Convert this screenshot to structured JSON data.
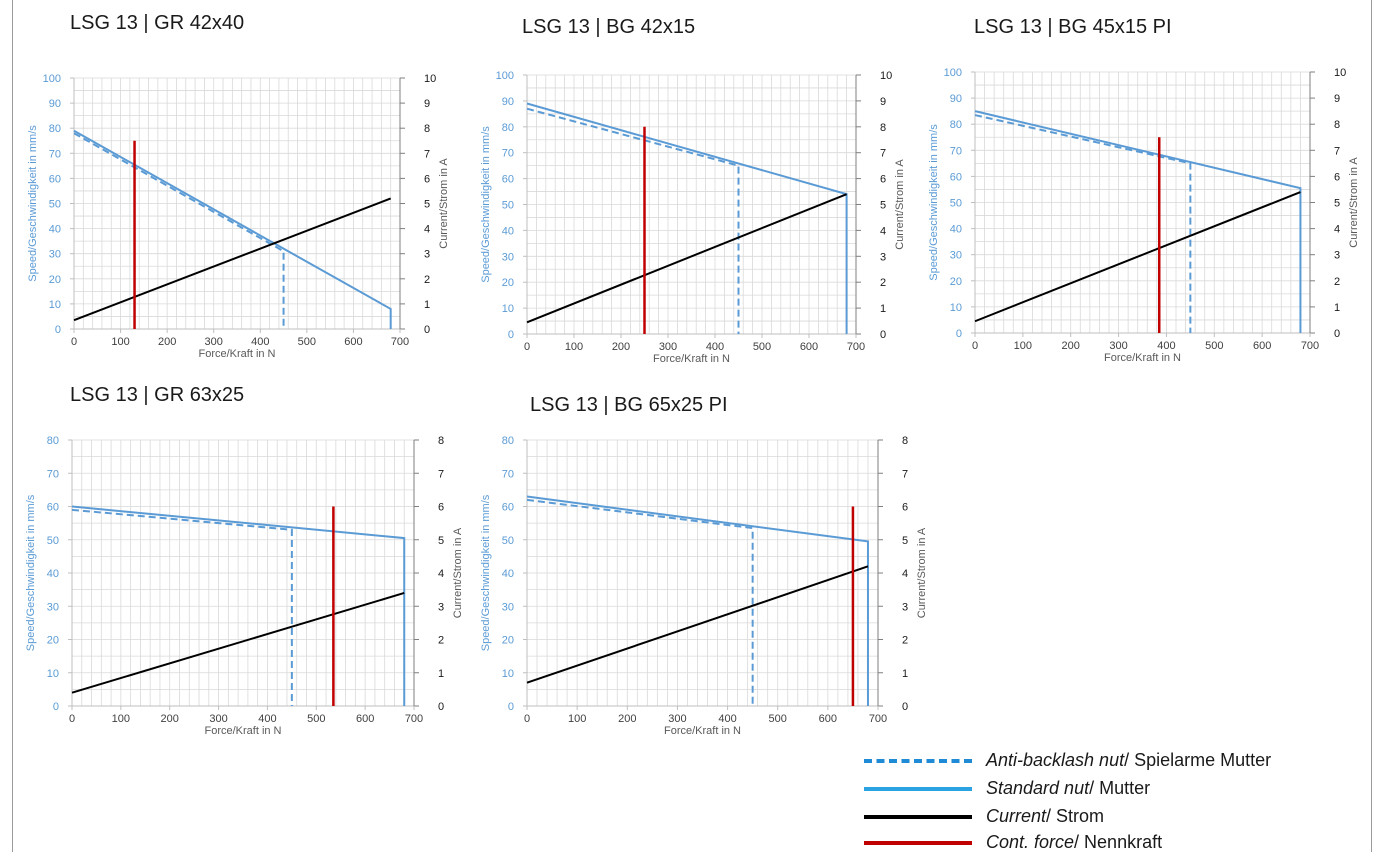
{
  "colors": {
    "standard": "#5b9bd5",
    "anti_backlash": "#5b9bd5",
    "current": "#000000",
    "cont_force": "#c00000",
    "left_axis_text": "#5b9bd5",
    "grid": "#d9d9d9",
    "legend_dash": "#1f8ad6",
    "legend_solid": "#2ba3e3"
  },
  "legend": {
    "anti_backlash": {
      "italic": "Anti-backlash nut",
      "plain": "/ Spielarme Mutter"
    },
    "standard": {
      "italic": "Standard nut",
      "plain": "/ Mutter"
    },
    "current": {
      "italic": "Current",
      "plain": "/ Strom"
    },
    "cont_force": {
      "italic": "Cont. force",
      "plain": "/ Nennkraft"
    }
  },
  "chart_data": [
    {
      "type": "line",
      "title": "LSG 13 | GR 42x40",
      "xlabel": "Force/Kraft in N",
      "ylabel": "Speed/Geschwindigkeit in mm/s",
      "y2label": "Current/Strom in A",
      "xlim": [
        0,
        700
      ],
      "xticks": [
        0,
        100,
        200,
        300,
        400,
        500,
        600,
        700
      ],
      "ylim": [
        0,
        100
      ],
      "yticks": [
        0,
        10,
        20,
        30,
        40,
        50,
        60,
        70,
        80,
        90,
        100
      ],
      "y2lim": [
        0,
        10
      ],
      "y2ticks": [
        0,
        1,
        2,
        3,
        4,
        5,
        6,
        7,
        8,
        9,
        10
      ],
      "grid": true,
      "series": [
        {
          "key": "standard",
          "axis": "left",
          "x": [
            0,
            680,
            680
          ],
          "y": [
            79,
            8,
            0
          ]
        },
        {
          "key": "anti_backlash",
          "axis": "left",
          "x": [
            0,
            450,
            450
          ],
          "y": [
            78,
            31,
            0
          ]
        },
        {
          "key": "current",
          "axis": "right",
          "x": [
            0,
            680
          ],
          "y": [
            0.35,
            5.2
          ]
        },
        {
          "key": "cont_force",
          "axis": "left",
          "x": [
            130,
            130
          ],
          "y": [
            0,
            75
          ]
        }
      ]
    },
    {
      "type": "line",
      "title": "LSG 13 | BG 42x15",
      "xlabel": "Force/Kraft in N",
      "ylabel": "Speed/Geschwindigkeit in mm/s",
      "y2label": "Current/Strom in A",
      "xlim": [
        0,
        700
      ],
      "xticks": [
        0,
        100,
        200,
        300,
        400,
        500,
        600,
        700
      ],
      "ylim": [
        0,
        100
      ],
      "yticks": [
        0,
        10,
        20,
        30,
        40,
        50,
        60,
        70,
        80,
        90,
        100
      ],
      "y2lim": [
        0,
        10
      ],
      "y2ticks": [
        0,
        1,
        2,
        3,
        4,
        5,
        6,
        7,
        8,
        9,
        10
      ],
      "grid": true,
      "series": [
        {
          "key": "standard",
          "axis": "left",
          "x": [
            0,
            680,
            680
          ],
          "y": [
            89,
            54,
            0
          ]
        },
        {
          "key": "anti_backlash",
          "axis": "left",
          "x": [
            0,
            450,
            450
          ],
          "y": [
            87,
            65,
            0
          ]
        },
        {
          "key": "current",
          "axis": "right",
          "x": [
            0,
            680
          ],
          "y": [
            0.45,
            5.4
          ]
        },
        {
          "key": "cont_force",
          "axis": "left",
          "x": [
            250,
            250
          ],
          "y": [
            0,
            80
          ]
        }
      ]
    },
    {
      "type": "line",
      "title": "LSG 13 | BG 45x15 PI",
      "xlabel": "Force/Kraft in N",
      "ylabel": "Speed/Geschwindigkeit in mm/s",
      "y2label": "Current/Strom in A",
      "xlim": [
        0,
        700
      ],
      "xticks": [
        0,
        100,
        200,
        300,
        400,
        500,
        600,
        700
      ],
      "ylim": [
        0,
        100
      ],
      "yticks": [
        0,
        10,
        20,
        30,
        40,
        50,
        60,
        70,
        80,
        90,
        100
      ],
      "y2lim": [
        0,
        10
      ],
      "y2ticks": [
        0,
        1,
        2,
        3,
        4,
        5,
        6,
        7,
        8,
        9,
        10
      ],
      "grid": true,
      "series": [
        {
          "key": "standard",
          "axis": "left",
          "x": [
            0,
            680,
            680
          ],
          "y": [
            85,
            55.5,
            0
          ]
        },
        {
          "key": "anti_backlash",
          "axis": "left",
          "x": [
            0,
            450,
            450
          ],
          "y": [
            83.5,
            65,
            0
          ]
        },
        {
          "key": "current",
          "axis": "right",
          "x": [
            0,
            680
          ],
          "y": [
            0.45,
            5.4
          ]
        },
        {
          "key": "cont_force",
          "axis": "left",
          "x": [
            385,
            385
          ],
          "y": [
            0,
            75
          ]
        }
      ]
    },
    {
      "type": "line",
      "title": "LSG 13 | GR 63x25",
      "xlabel": "Force/Kraft in N",
      "ylabel": "Speed/Geschwindigkeit in mm/s",
      "y2label": "Current/Strom in A",
      "xlim": [
        0,
        700
      ],
      "xticks": [
        0,
        100,
        200,
        300,
        400,
        500,
        600,
        700
      ],
      "ylim": [
        0,
        80
      ],
      "yticks": [
        0,
        10,
        20,
        30,
        40,
        50,
        60,
        70,
        80
      ],
      "y2lim": [
        0,
        8
      ],
      "y2ticks": [
        0,
        1,
        2,
        3,
        4,
        5,
        6,
        7,
        8
      ],
      "grid": true,
      "series": [
        {
          "key": "standard",
          "axis": "left",
          "x": [
            0,
            680,
            680
          ],
          "y": [
            60,
            50.5,
            0
          ]
        },
        {
          "key": "anti_backlash",
          "axis": "left",
          "x": [
            0,
            450,
            450
          ],
          "y": [
            59,
            53,
            0
          ]
        },
        {
          "key": "current",
          "axis": "right",
          "x": [
            0,
            680
          ],
          "y": [
            0.4,
            3.4
          ]
        },
        {
          "key": "cont_force",
          "axis": "left",
          "x": [
            535,
            535
          ],
          "y": [
            0,
            60
          ]
        }
      ]
    },
    {
      "type": "line",
      "title": "LSG 13 | BG 65x25 PI",
      "xlabel": "Force/Kraft in N",
      "ylabel": "Speed/Geschwindigkeit in mm/s",
      "y2label": "Current/Strom in A",
      "xlim": [
        0,
        700
      ],
      "xticks": [
        0,
        100,
        200,
        300,
        400,
        500,
        600,
        700
      ],
      "ylim": [
        0,
        80
      ],
      "yticks": [
        0,
        10,
        20,
        30,
        40,
        50,
        60,
        70,
        80
      ],
      "y2lim": [
        0,
        8
      ],
      "y2ticks": [
        0,
        1,
        2,
        3,
        4,
        5,
        6,
        7,
        8
      ],
      "grid": true,
      "series": [
        {
          "key": "standard",
          "axis": "left",
          "x": [
            0,
            680,
            680
          ],
          "y": [
            63,
            49.5,
            0
          ]
        },
        {
          "key": "anti_backlash",
          "axis": "left",
          "x": [
            0,
            450,
            450
          ],
          "y": [
            62,
            53.5,
            0
          ]
        },
        {
          "key": "current",
          "axis": "right",
          "x": [
            0,
            680
          ],
          "y": [
            0.7,
            4.2
          ]
        },
        {
          "key": "cont_force",
          "axis": "left",
          "x": [
            650,
            650
          ],
          "y": [
            0,
            60
          ]
        }
      ]
    }
  ]
}
